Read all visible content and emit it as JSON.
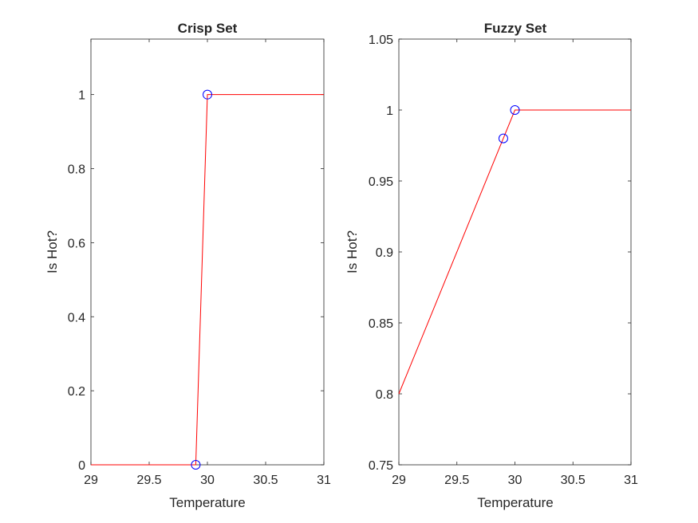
{
  "chart_data": [
    {
      "type": "line",
      "title": "Crisp Set",
      "xlabel": "Temperature",
      "ylabel": "Is Hot?",
      "xlim": [
        29,
        31
      ],
      "ylim": [
        0,
        1.15
      ],
      "xticks": [
        "29",
        "29.5",
        "30",
        "30.5",
        "31"
      ],
      "yticks": [
        "0",
        "0.2",
        "0.4",
        "0.6",
        "0.8",
        "1"
      ],
      "line": {
        "x": [
          29,
          29.9,
          30,
          31
        ],
        "y": [
          0,
          0,
          1,
          1
        ],
        "color": "#ff0000"
      },
      "markers": {
        "x": [
          29.9,
          30
        ],
        "y": [
          0,
          1
        ],
        "color": "#0000ff",
        "shape": "circle"
      }
    },
    {
      "type": "line",
      "title": "Fuzzy Set",
      "xlabel": "Temperature",
      "ylabel": "Is Hot?",
      "xlim": [
        29,
        31
      ],
      "ylim": [
        0.75,
        1.05
      ],
      "xticks": [
        "29",
        "29.5",
        "30",
        "30.5",
        "31"
      ],
      "yticks": [
        "0.75",
        "0.8",
        "0.85",
        "0.9",
        "0.95",
        "1",
        "1.05"
      ],
      "line": {
        "x": [
          29,
          29.9,
          30,
          31
        ],
        "y": [
          0.8,
          0.98,
          1,
          1
        ],
        "color": "#ff0000"
      },
      "markers": {
        "x": [
          29.9,
          30
        ],
        "y": [
          0.98,
          1
        ],
        "color": "#0000ff",
        "shape": "circle"
      }
    }
  ]
}
